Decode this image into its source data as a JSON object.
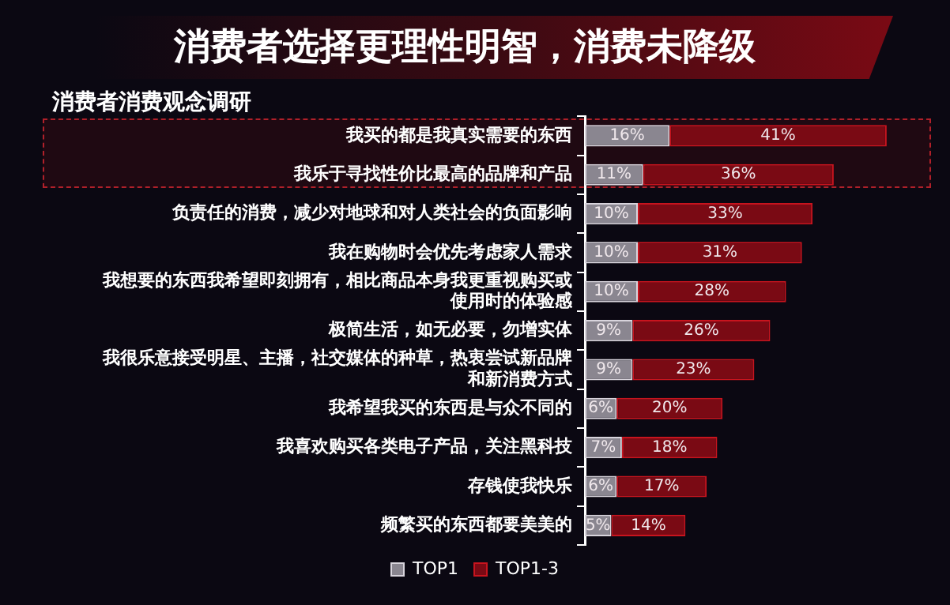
{
  "chart_data": {
    "type": "bar",
    "orientation": "horizontal",
    "stacked": true,
    "title": "消费者选择更理性明智，消费未降级",
    "subtitle": "消费者消费观念调研",
    "categories": [
      "我买的都是我真实需要的东西",
      "我乐于寻找性价比最高的品牌和产品",
      "负责任的消费，减少对地球和对人类社会的负面影响",
      "我在购物时会优先考虑家人需求",
      "我想要的东西我希望即刻拥有，相比商品本身我更重视购买或使用时的体验感",
      "极简生活，如无必要，勿增实体",
      "我很乐意接受明星、主播，社交媒体的种草，热衷尝试新品牌和新消费方式",
      "我希望我买的东西是与众不同的",
      "我喜欢购买各类电子产品，关注黑科技",
      "存钱使我快乐",
      "频繁买的东西都要美美的"
    ],
    "series": [
      {
        "name": "TOP1",
        "color": "#8a8690",
        "values": [
          16,
          11,
          10,
          10,
          10,
          9,
          9,
          6,
          7,
          6,
          5
        ],
        "value_labels": [
          "16%",
          "11%",
          "10%",
          "10%",
          "10%",
          "9%",
          "9%",
          "6%",
          "7%",
          "6%",
          "5%"
        ]
      },
      {
        "name": "TOP1-3",
        "color": "#7a0a14",
        "values": [
          41,
          36,
          33,
          31,
          28,
          26,
          23,
          20,
          18,
          17,
          14
        ],
        "value_labels": [
          "41%",
          "36%",
          "33%",
          "31%",
          "28%",
          "26%",
          "23%",
          "20%",
          "18%",
          "17%",
          "14%"
        ]
      }
    ],
    "legend": "bottom"
  }
}
